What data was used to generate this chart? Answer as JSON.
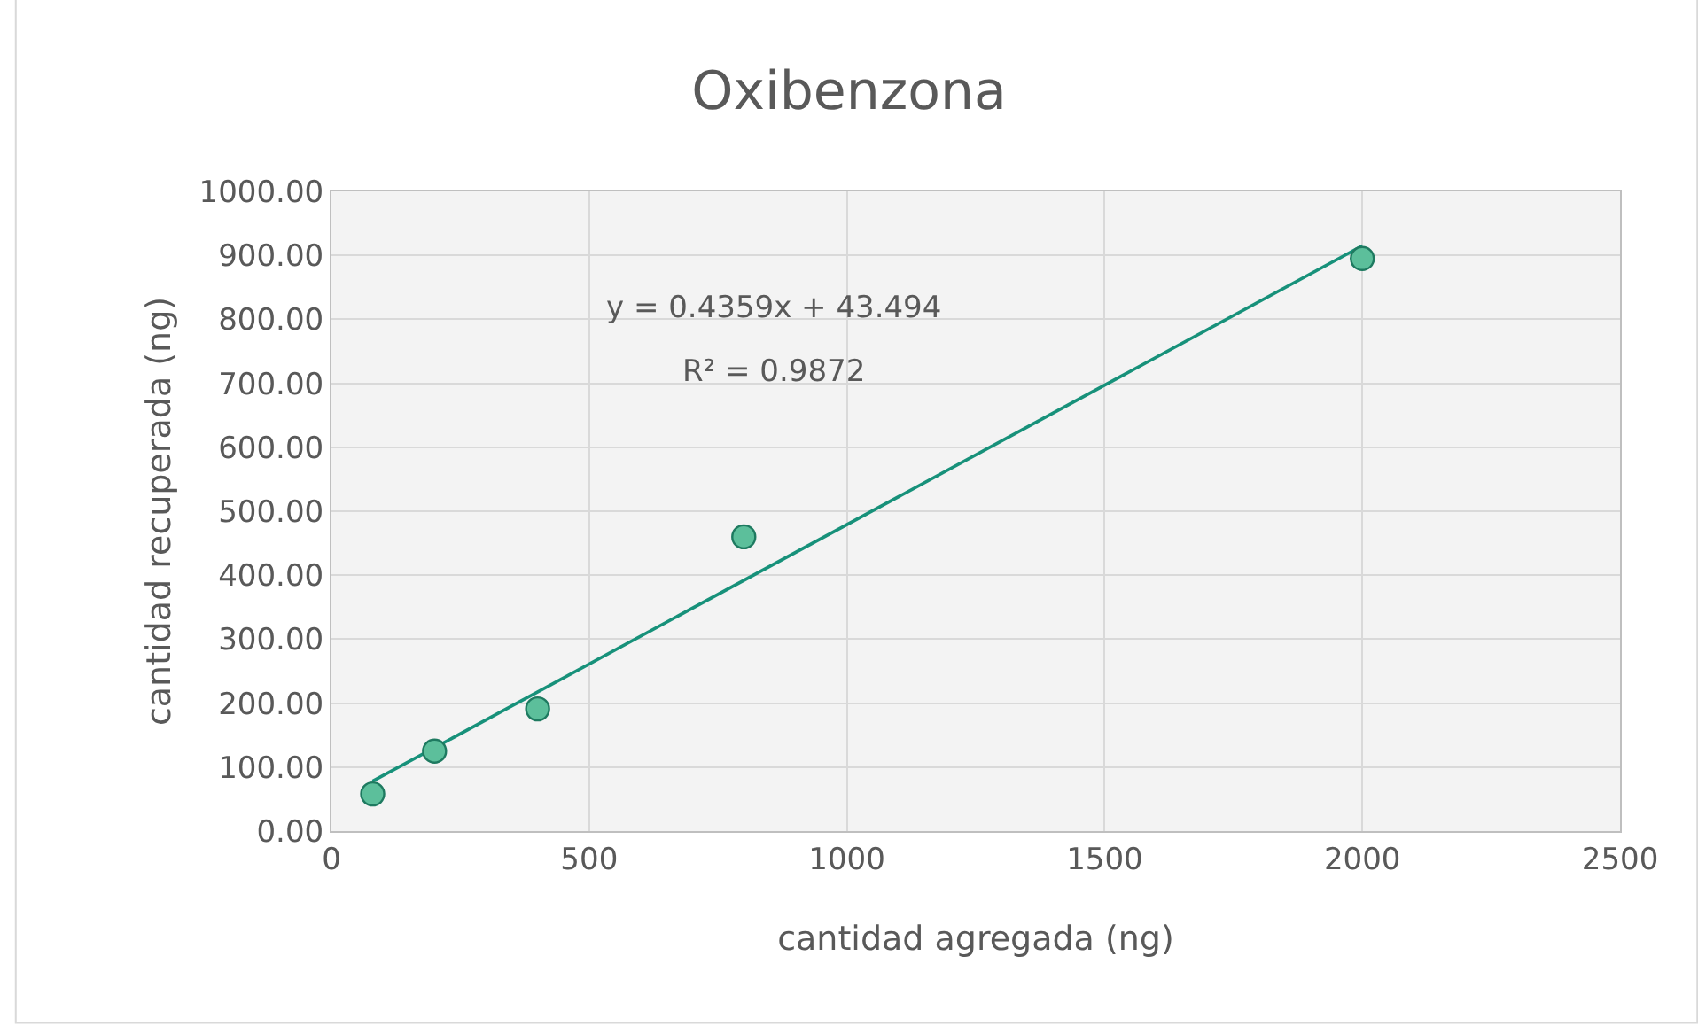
{
  "chart_data": {
    "type": "scatter",
    "title": "Oxibenzona",
    "xlabel": "cantidad agregada (ng)",
    "ylabel": "cantidad recuperada (ng)",
    "x": [
      80,
      200,
      400,
      800,
      2000
    ],
    "series": [
      {
        "color": "#5cbf9b",
        "marker": "circle",
        "values": [
          58,
          125,
          191,
          460,
          895
        ]
      },
      {
        "type": "line",
        "color": "#17917a",
        "marker": "none",
        "x": [
          80,
          2000
        ],
        "values": [
          78,
          915
        ]
      }
    ],
    "annotations": [
      "y = 0.4359x + 43.494",
      "R² = 0.9872"
    ],
    "xlim": [
      0,
      2500
    ],
    "xticks": [
      0,
      500,
      1000,
      1500,
      2000,
      2500
    ],
    "ylim": [
      0,
      1000
    ],
    "yticks": [
      {
        "value": 0,
        "label": "0.00"
      },
      {
        "value": 100,
        "label": "100.00"
      },
      {
        "value": 200,
        "label": "200.00"
      },
      {
        "value": 300,
        "label": "300.00"
      },
      {
        "value": 400,
        "label": "400.00"
      },
      {
        "value": 500,
        "label": "500.00"
      },
      {
        "value": 600,
        "label": "600.00"
      },
      {
        "value": 700,
        "label": "700.00"
      },
      {
        "value": 800,
        "label": "800.00"
      },
      {
        "value": 900,
        "label": "900.00"
      },
      {
        "value": 1000,
        "label": "1000.00"
      }
    ],
    "grid": true,
    "legend": false
  }
}
